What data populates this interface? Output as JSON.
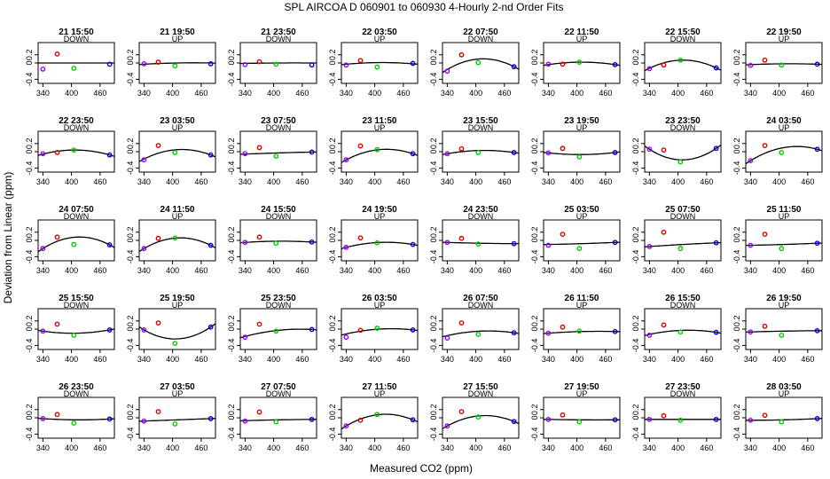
{
  "chart_data": {
    "type": "scatter",
    "title": "SPL   AIRCOA D   060901 to 060930   4-Hourly 2-nd Order Fits",
    "xlabel": "Measured CO2 (ppm)",
    "ylabel": "Deviation from Linear (ppm)",
    "xlim": [
      330,
      490
    ],
    "ylim": [
      -0.5,
      0.5
    ],
    "x_ticks": [
      340,
      400,
      460
    ],
    "y_ticks": [
      -0.4,
      0.0,
      0.2
    ],
    "x_tick_labels": [
      "340",
      "400",
      "460"
    ],
    "y_tick_labels": [
      "-0.4",
      "0",
      "0.2"
    ],
    "grid": false,
    "legend": "none",
    "standards_x": [
      340,
      370,
      405,
      480
    ],
    "standard_colors": [
      "#9900ff",
      "#dd0000",
      "#00cc00",
      "#0000dd"
    ],
    "fit_color": "#000000",
    "panels": [
      {
        "title": "21 15:50",
        "direction": "DOWN",
        "y": [
          -0.15,
          0.22,
          -0.13,
          -0.03
        ],
        "fit": [
          0.0,
          0.0,
          0.0
        ]
      },
      {
        "title": "21 19:50",
        "direction": "UP",
        "y": [
          -0.02,
          0.02,
          -0.07,
          -0.02
        ],
        "fit": [
          -0.03,
          0.0,
          0.0
        ]
      },
      {
        "title": "21 23:50",
        "direction": "DOWN",
        "y": [
          -0.04,
          0.03,
          -0.03,
          -0.05
        ],
        "fit": [
          -0.01,
          0.0,
          0.0
        ]
      },
      {
        "title": "22 03:50",
        "direction": "UP",
        "y": [
          -0.05,
          0.06,
          -0.1,
          -0.01
        ],
        "fit": [
          -0.03,
          0.01,
          -0.02
        ]
      },
      {
        "title": "22 07:50",
        "direction": "DOWN",
        "y": [
          -0.2,
          0.2,
          0.01,
          -0.09
        ],
        "fit": [
          -0.16,
          0.1,
          -0.09
        ]
      },
      {
        "title": "22 11:50",
        "direction": "UP",
        "y": [
          -0.03,
          -0.03,
          0.02,
          -0.04
        ],
        "fit": [
          -0.04,
          0.02,
          -0.04
        ]
      },
      {
        "title": "22 15:50",
        "direction": "DOWN",
        "y": [
          -0.14,
          -0.05,
          0.07,
          -0.12
        ],
        "fit": [
          -0.13,
          0.07,
          -0.12
        ]
      },
      {
        "title": "22 19:50",
        "direction": "UP",
        "y": [
          -0.06,
          0.07,
          -0.05,
          -0.03
        ],
        "fit": [
          -0.04,
          -0.02,
          -0.03
        ]
      },
      {
        "title": "22 23:50",
        "direction": "DOWN",
        "y": [
          -0.05,
          -0.02,
          0.04,
          -0.08
        ],
        "fit": [
          -0.06,
          0.04,
          -0.08
        ]
      },
      {
        "title": "23 03:50",
        "direction": "UP",
        "y": [
          -0.2,
          0.15,
          -0.02,
          -0.08
        ],
        "fit": [
          -0.18,
          0.05,
          -0.08
        ]
      },
      {
        "title": "23 07:50",
        "direction": "DOWN",
        "y": [
          -0.05,
          0.1,
          -0.11,
          -0.01
        ],
        "fit": [
          -0.06,
          -0.03,
          -0.01
        ]
      },
      {
        "title": "23 11:50",
        "direction": "UP",
        "y": [
          -0.2,
          0.14,
          0.05,
          -0.05
        ],
        "fit": [
          -0.2,
          0.05,
          -0.05
        ]
      },
      {
        "title": "23 15:50",
        "direction": "DOWN",
        "y": [
          -0.05,
          0.07,
          -0.02,
          -0.02
        ],
        "fit": [
          -0.05,
          0.03,
          -0.02
        ]
      },
      {
        "title": "23 19:50",
        "direction": "UP",
        "y": [
          -0.03,
          0.08,
          -0.13,
          -0.02
        ],
        "fit": [
          -0.03,
          -0.07,
          -0.02
        ]
      },
      {
        "title": "23 23:50",
        "direction": "DOWN",
        "y": [
          0.06,
          0.04,
          -0.25,
          0.08
        ],
        "fit": [
          0.06,
          -0.2,
          0.08
        ]
      },
      {
        "title": "24 03:50",
        "direction": "UP",
        "y": [
          -0.22,
          0.15,
          -0.02,
          0.06
        ],
        "fit": [
          -0.22,
          0.1,
          0.06
        ]
      },
      {
        "title": "24 07:50",
        "direction": "DOWN",
        "y": [
          -0.2,
          0.08,
          -0.1,
          -0.11
        ],
        "fit": [
          -0.2,
          0.08,
          -0.11
        ]
      },
      {
        "title": "24 11:50",
        "direction": "UP",
        "y": [
          -0.2,
          0.05,
          0.06,
          -0.12
        ],
        "fit": [
          -0.2,
          0.06,
          -0.12
        ]
      },
      {
        "title": "24 15:50",
        "direction": "DOWN",
        "y": [
          -0.05,
          0.08,
          -0.07,
          -0.04
        ],
        "fit": [
          -0.05,
          -0.02,
          -0.04
        ]
      },
      {
        "title": "24 19:50",
        "direction": "UP",
        "y": [
          -0.17,
          0.06,
          -0.06,
          -0.1
        ],
        "fit": [
          -0.17,
          -0.05,
          -0.1
        ]
      },
      {
        "title": "24 23:50",
        "direction": "DOWN",
        "y": [
          -0.05,
          0.05,
          -0.09,
          -0.08
        ],
        "fit": [
          -0.05,
          -0.07,
          -0.08
        ]
      },
      {
        "title": "25 03:50",
        "direction": "UP",
        "y": [
          -0.12,
          0.15,
          -0.2,
          -0.05
        ],
        "fit": [
          -0.1,
          -0.08,
          -0.05
        ]
      },
      {
        "title": "25 07:50",
        "direction": "DOWN",
        "y": [
          -0.15,
          0.2,
          -0.2,
          -0.06
        ],
        "fit": [
          -0.15,
          -0.1,
          -0.06
        ]
      },
      {
        "title": "25 11:50",
        "direction": "UP",
        "y": [
          -0.12,
          0.15,
          -0.2,
          -0.07
        ],
        "fit": [
          -0.12,
          -0.1,
          -0.07
        ]
      },
      {
        "title": "25 15:50",
        "direction": "DOWN",
        "y": [
          -0.05,
          0.12,
          -0.15,
          -0.02
        ],
        "fit": [
          -0.05,
          -0.1,
          -0.02
        ]
      },
      {
        "title": "25 19:50",
        "direction": "UP",
        "y": [
          -0.02,
          0.15,
          -0.35,
          0.05
        ],
        "fit": [
          -0.02,
          -0.24,
          0.05
        ]
      },
      {
        "title": "25 23:50",
        "direction": "DOWN",
        "y": [
          -0.2,
          0.12,
          -0.05,
          -0.01
        ],
        "fit": [
          -0.18,
          -0.03,
          -0.01
        ]
      },
      {
        "title": "26 03:50",
        "direction": "UP",
        "y": [
          -0.2,
          -0.03,
          0.02,
          -0.02
        ],
        "fit": [
          -0.12,
          0.0,
          -0.02
        ]
      },
      {
        "title": "26 07:50",
        "direction": "DOWN",
        "y": [
          -0.22,
          0.15,
          -0.13,
          -0.09
        ],
        "fit": [
          -0.16,
          -0.05,
          -0.09
        ]
      },
      {
        "title": "26 11:50",
        "direction": "UP",
        "y": [
          -0.1,
          0.05,
          -0.05,
          -0.06
        ],
        "fit": [
          -0.1,
          -0.06,
          -0.06
        ]
      },
      {
        "title": "26 15:50",
        "direction": "DOWN",
        "y": [
          -0.15,
          0.1,
          -0.07,
          -0.08
        ],
        "fit": [
          -0.13,
          -0.03,
          -0.08
        ]
      },
      {
        "title": "26 19:50",
        "direction": "UP",
        "y": [
          -0.07,
          0.07,
          -0.15,
          -0.04
        ],
        "fit": [
          -0.07,
          -0.05,
          -0.04
        ]
      },
      {
        "title": "26 23:50",
        "direction": "DOWN",
        "y": [
          -0.02,
          0.08,
          -0.13,
          -0.03
        ],
        "fit": [
          -0.02,
          -0.05,
          -0.03
        ]
      },
      {
        "title": "27 03:50",
        "direction": "UP",
        "y": [
          -0.08,
          0.15,
          -0.15,
          -0.02
        ],
        "fit": [
          -0.08,
          -0.05,
          -0.02
        ]
      },
      {
        "title": "27 07:50",
        "direction": "DOWN",
        "y": [
          -0.08,
          0.14,
          -0.1,
          -0.04
        ],
        "fit": [
          -0.07,
          -0.05,
          -0.04
        ]
      },
      {
        "title": "27 11:50",
        "direction": "UP",
        "y": [
          -0.2,
          -0.06,
          0.08,
          -0.05
        ],
        "fit": [
          -0.2,
          0.08,
          -0.05
        ]
      },
      {
        "title": "27 15:50",
        "direction": "DOWN",
        "y": [
          -0.2,
          0.15,
          0.02,
          -0.09
        ],
        "fit": [
          -0.2,
          0.05,
          -0.09
        ]
      },
      {
        "title": "27 19:50",
        "direction": "UP",
        "y": [
          -0.04,
          0.07,
          -0.1,
          -0.05
        ],
        "fit": [
          -0.04,
          -0.05,
          -0.05
        ]
      },
      {
        "title": "27 23:50",
        "direction": "DOWN",
        "y": [
          -0.04,
          0.05,
          -0.06,
          -0.04
        ],
        "fit": [
          -0.04,
          -0.04,
          -0.04
        ]
      },
      {
        "title": "28 03:50",
        "direction": "UP",
        "y": [
          -0.06,
          0.06,
          -0.1,
          -0.02
        ],
        "fit": [
          -0.06,
          -0.05,
          -0.02
        ]
      }
    ]
  }
}
